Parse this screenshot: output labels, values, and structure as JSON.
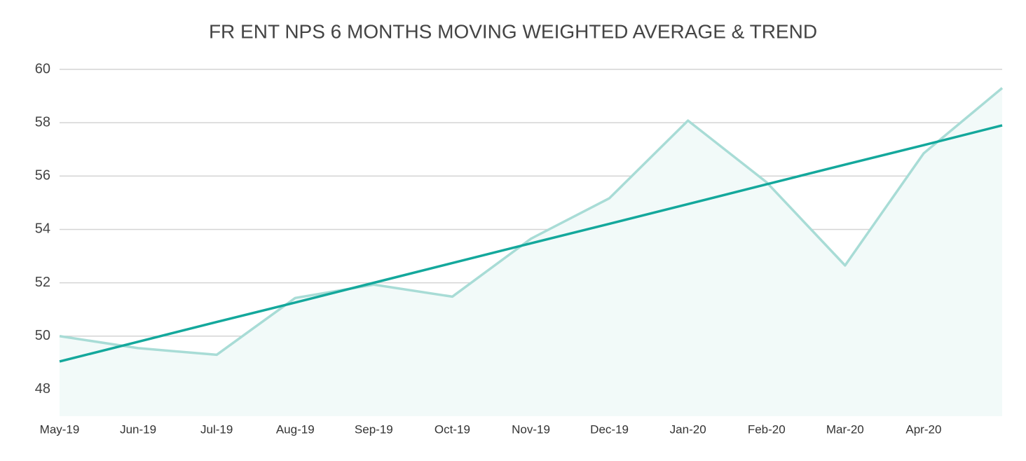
{
  "chart_data": {
    "type": "line",
    "title": "FR ENT NPS 6 MONTHS MOVING WEIGHTED AVERAGE & TREND",
    "categories": [
      "May-19",
      "Jun-19",
      "Jul-19",
      "Aug-19",
      "Sep-19",
      "Oct-19",
      "Nov-19",
      "Dec-19",
      "Jan-20",
      "Feb-20",
      "Mar-20",
      "Apr-20",
      null
    ],
    "series": [
      {
        "color": "#a8dcd6",
        "area_color": "#f2faf9",
        "values": [
          50.0,
          49.55,
          49.3,
          51.43,
          51.93,
          51.48,
          53.65,
          55.17,
          58.08,
          55.77,
          52.65,
          56.85,
          59.3
        ]
      },
      {
        "color": "#14a89c",
        "values": [
          49.05,
          49.79,
          50.53,
          51.26,
          52.0,
          52.74,
          53.48,
          54.21,
          54.95,
          55.69,
          56.43,
          57.16,
          57.9
        ]
      }
    ],
    "ylim": [
      47,
      60
    ],
    "yticks": [
      48,
      50,
      52,
      54,
      56,
      58,
      60
    ],
    "grid": true
  }
}
